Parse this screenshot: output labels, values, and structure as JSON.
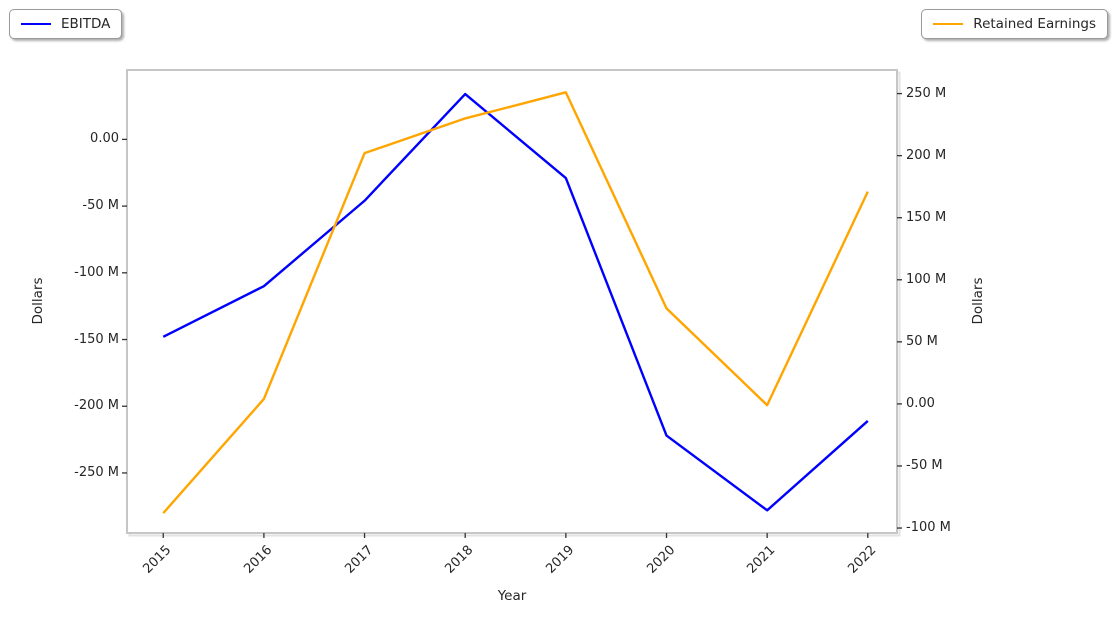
{
  "page": {
    "background": "#ffffff"
  },
  "legend_left": {
    "label": "EBITDA",
    "color": "#0000ff"
  },
  "legend_right": {
    "label": "Retained Earnings",
    "color": "#ffa500"
  },
  "chart_data": {
    "type": "line",
    "title": "",
    "xlabel": "Year",
    "ylabel_left": "Dollars",
    "ylabel_right": "Dollars",
    "unit": "millions of dollars",
    "grid": false,
    "legend_position": "figure top-left and top-right, outside axes",
    "categories": [
      2015,
      2016,
      2017,
      2018,
      2019,
      2020,
      2021,
      2022
    ],
    "x_tick_labels": [
      "2015",
      "2016",
      "2017",
      "2018",
      "2019",
      "2020",
      "2021",
      "2022"
    ],
    "xlim": [
      2014.64,
      2022.29
    ],
    "series": [
      {
        "name": "EBITDA",
        "axis": "left",
        "color": "#0000ff",
        "values_millions": [
          -148,
          -110,
          -46,
          34,
          -29,
          -222,
          -278,
          -211
        ]
      },
      {
        "name": "Retained Earnings",
        "axis": "right",
        "color": "#ffa500",
        "values_millions": [
          -88,
          4,
          202,
          230,
          251,
          77,
          -1,
          171
        ]
      }
    ],
    "left_axis": {
      "ylim_millions": [
        -295,
        52
      ],
      "tick_values": [
        0,
        -50,
        -100,
        -150,
        -200,
        -250
      ],
      "tick_labels": [
        "0.00",
        "-50 M",
        "-100 M",
        "-150 M",
        "-200 M",
        "-250 M"
      ]
    },
    "right_axis": {
      "ylim_millions": [
        -104,
        269
      ],
      "tick_values": [
        250,
        200,
        150,
        100,
        50,
        0,
        -50,
        -100
      ],
      "tick_labels": [
        "250 M",
        "200 M",
        "150 M",
        "100 M",
        "50 M",
        "0.00",
        "-50 M",
        "-100 M"
      ]
    }
  }
}
